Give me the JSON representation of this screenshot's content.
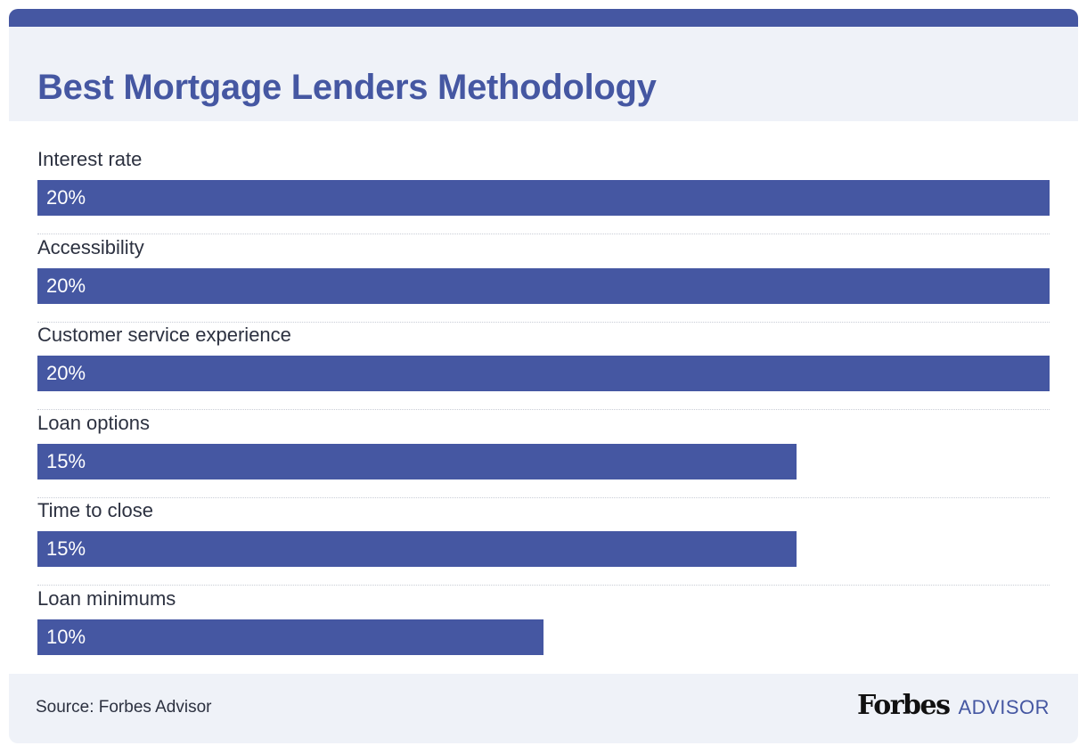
{
  "colors": {
    "accent": "#4557a2",
    "panel": "#eff2f8",
    "text": "#2c3140"
  },
  "chart_data": {
    "type": "bar",
    "orientation": "horizontal",
    "title": "Best Mortgage Lenders Methodology",
    "categories": [
      "Interest rate",
      "Accessibility",
      "Customer service experience",
      "Loan options",
      "Time to close",
      "Loan minimums"
    ],
    "values": [
      20,
      20,
      20,
      15,
      15,
      10
    ],
    "value_labels": [
      "20%",
      "20%",
      "20%",
      "15%",
      "15%",
      "10%"
    ],
    "unit": "%",
    "xlim": [
      0,
      20
    ],
    "grid": false,
    "legend": "none"
  },
  "footer": {
    "source": "Source: Forbes Advisor",
    "logo_text": "Forbes",
    "logo_suffix": "ADVISOR"
  }
}
